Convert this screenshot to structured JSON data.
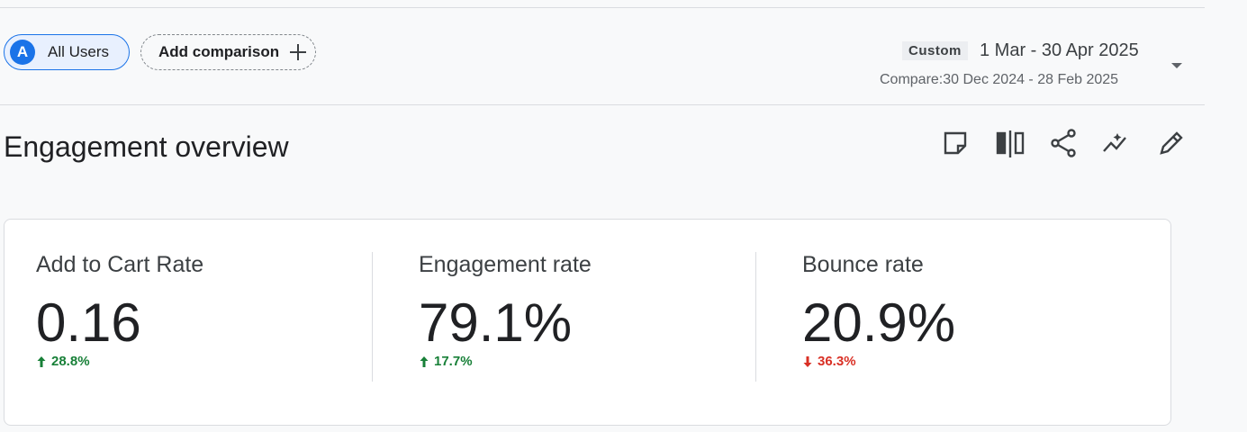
{
  "header": {
    "segment": {
      "badge": "A",
      "label": "All Users"
    },
    "add_comparison": "Add comparison",
    "date_range": {
      "tag": "Custom",
      "range": "1 Mar - 30 Apr 2025",
      "compare": "Compare:30 Dec 2024 - 28 Feb 2025"
    }
  },
  "title": "Engagement overview",
  "metrics": [
    {
      "label": "Add to Cart Rate",
      "value": "0.16",
      "change": "28.8%",
      "trend": "up"
    },
    {
      "label": "Engagement rate",
      "value": "79.1%",
      "change": "17.7%",
      "trend": "up"
    },
    {
      "label": "Bounce rate",
      "value": "20.9%",
      "change": "36.3%",
      "trend": "down"
    }
  ]
}
